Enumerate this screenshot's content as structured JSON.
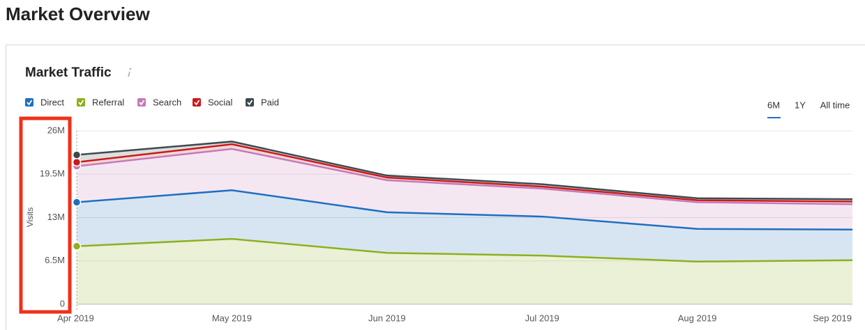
{
  "header": {
    "title": "Market Overview"
  },
  "chart_data": {
    "type": "stacked-area",
    "title": "Market Traffic",
    "controls": [
      "6M",
      "1Y",
      "All time"
    ],
    "y_label": "Visits",
    "categories": [
      "Apr 2019",
      "May 2019",
      "Jun 2019",
      "Jul 2019",
      "Aug 2019",
      "Sep 2019"
    ],
    "series": [
      {
        "name": "Direct",
        "color": "#1f6fbf",
        "values": [
          6.6,
          7.3,
          6.1,
          5.85,
          4.9,
          4.6
        ]
      },
      {
        "name": "Referral",
        "color": "#8db01e",
        "values": [
          8.7,
          9.8,
          7.7,
          7.3,
          6.4,
          6.6
        ]
      },
      {
        "name": "Search",
        "color": "#c57ab8",
        "values": [
          5.4,
          6.2,
          4.8,
          4.2,
          4.0,
          3.8
        ]
      },
      {
        "name": "Social",
        "color": "#c91a1a",
        "values": [
          0.6,
          0.7,
          0.4,
          0.3,
          0.3,
          0.4
        ]
      },
      {
        "name": "Paid",
        "color": "#3d4a4f",
        "values": [
          1.1,
          0.4,
          0.3,
          0.35,
          0.3,
          0.35
        ]
      }
    ],
    "ylim": [
      0,
      26
    ],
    "yticks": [
      0,
      {
        "value": 6.5,
        "label": "6.5M"
      },
      {
        "value": 13,
        "label": "13M"
      },
      {
        "value": 19.5,
        "label": "19.5M"
      },
      {
        "value": 26,
        "label": "26M"
      }
    ],
    "grid": true
  }
}
